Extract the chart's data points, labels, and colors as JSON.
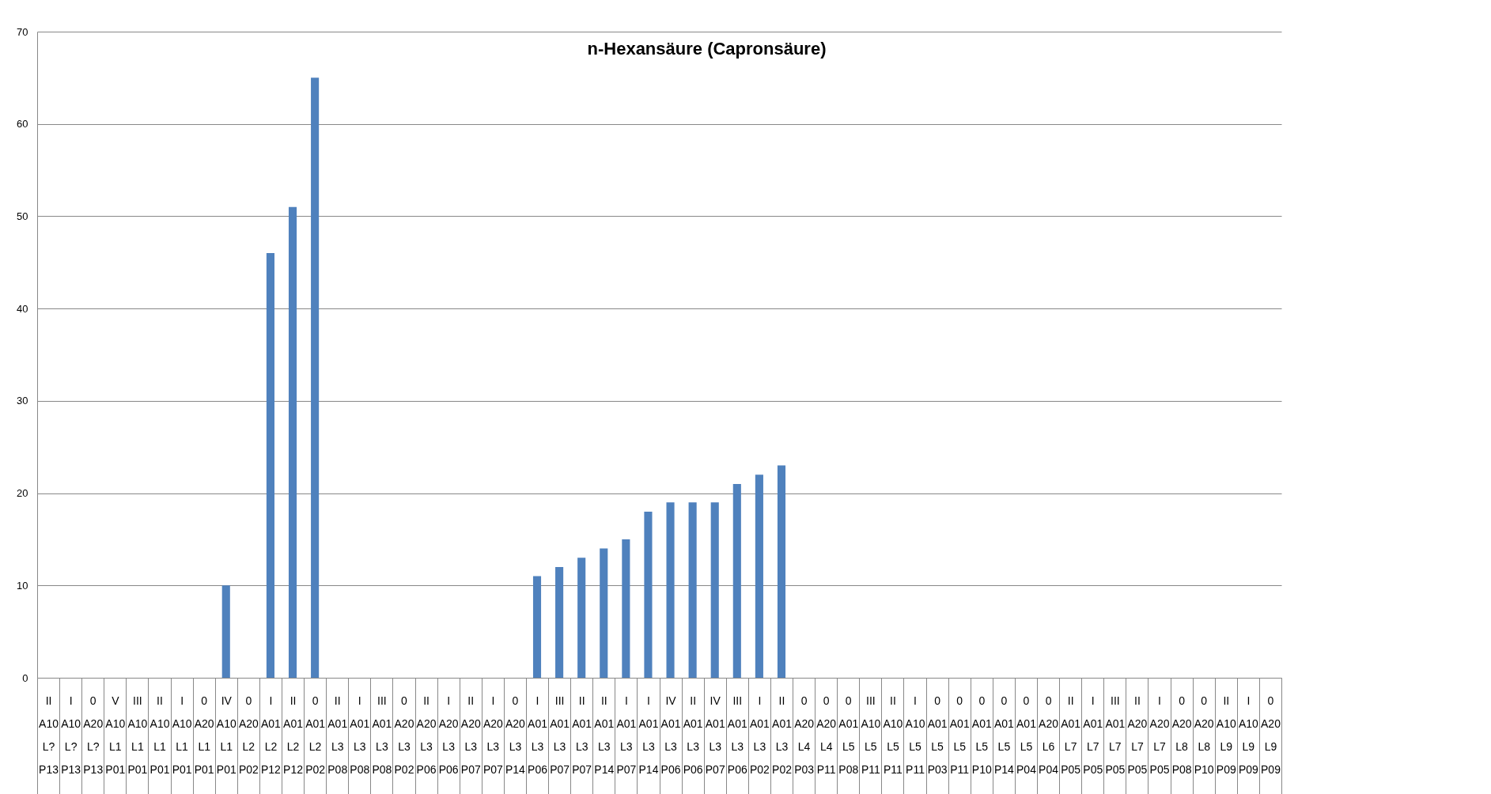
{
  "chart_data": {
    "type": "bar",
    "title": "n-Hexansäure (Capronsäure)",
    "categories": [
      "II\nA10\nL?\nP13",
      "I\nA10\nL?\nP13",
      "0\nA20\nL?\nP13",
      "V\nA10\nL1\nP01",
      "III\nA10\nL1\nP01",
      "II\nA10\nL1\nP01",
      "I\nA10\nL1\nP01",
      "0\nA20\nL1\nP01",
      "IV\nA10\nL1\nP01",
      "0\nA20\nL2\nP02",
      "I\nA01\nL2\nP12",
      "II\nA01\nL2\nP12",
      "0\nA01\nL2\nP02",
      "II\nA01\nL3\nP08",
      "I\nA01\nL3\nP08",
      "III\nA01\nL3\nP08",
      "0\nA20\nL3\nP02",
      "II\nA20\nL3\nP06",
      "I\nA20\nL3\nP06",
      "II\nA20\nL3\nP07",
      "I\nA20\nL3\nP07",
      "0\nA20\nL3\nP14",
      "I\nA01\nL3\nP06",
      "III\nA01\nL3\nP07",
      "II\nA01\nL3\nP07",
      "II\nA01\nL3\nP14",
      "I\nA01\nL3\nP07",
      "I\nA01\nL3\nP14",
      "IV\nA01\nL3\nP06",
      "II\nA01\nL3\nP06",
      "IV\nA01\nL3\nP07",
      "III\nA01\nL3\nP06",
      "I\nA01\nL3\nP02",
      "II\nA01\nL3\nP02",
      "0\nA20\nL4\nP03",
      "0\nA20\nL4\nP11",
      "0\nA01\nL5\nP08",
      "III\nA10\nL5\nP11",
      "II\nA10\nL5\nP11",
      "I\nA10\nL5\nP11",
      "0\nA01\nL5\nP03",
      "0\nA01\nL5\nP11",
      "0\nA01\nL5\nP10",
      "0\nA01\nL5\nP14",
      "0\nA01\nL5\nP04",
      "0\nA20\nL6\nP04",
      "II\nA01\nL7\nP05",
      "I\nA01\nL7\nP05",
      "III\nA01\nL7\nP05",
      "II\nA20\nL7\nP05",
      "I\nA20\nL7\nP05",
      "0\nA20\nL8\nP08",
      "0\nA20\nL8\nP10",
      "II\nA10\nL9\nP09",
      "I\nA10\nL9\nP09",
      "0\nA20\nL9\nP09"
    ],
    "values": [
      null,
      null,
      null,
      null,
      null,
      null,
      null,
      null,
      10,
      null,
      46,
      51,
      65,
      null,
      null,
      null,
      null,
      null,
      null,
      null,
      null,
      null,
      11,
      12,
      13,
      14,
      15,
      18,
      19,
      19,
      19,
      21,
      22,
      23,
      null,
      null,
      null,
      null,
      null,
      null,
      null,
      null,
      null,
      null,
      null,
      null,
      null,
      null,
      null,
      null,
      null,
      null,
      null,
      null,
      null,
      null
    ],
    "color": "#4f81bd",
    "ylim": [
      0,
      70
    ],
    "yticks": [
      0,
      10,
      20,
      30,
      40,
      50,
      60,
      70
    ],
    "grid": "y"
  }
}
